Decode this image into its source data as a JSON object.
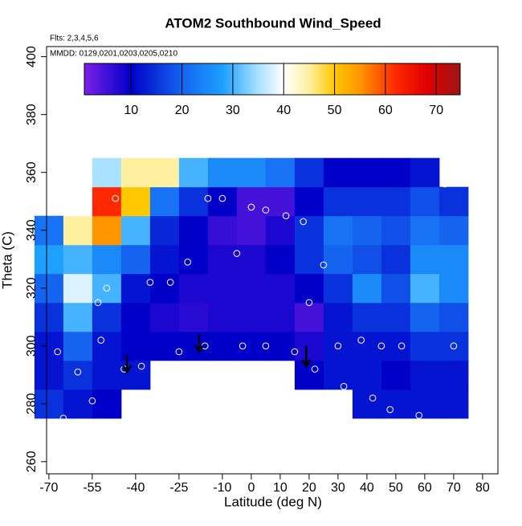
{
  "chart_data": {
    "type": "heatmap",
    "title": "ATOM2 Southbound Wind_Speed",
    "annotations": [
      "Flts: 2,3,4,5,6",
      "MMDD: 0129,0201,0203,0205,0210"
    ],
    "x_label": "Latitude (deg N)",
    "y_label": "Theta (C)",
    "xlim": [
      -70.8,
      85.3
    ],
    "ylim": [
      255.8,
      403.5
    ],
    "xticks": [
      -70,
      -55,
      -40,
      -25,
      -10,
      0,
      10,
      20,
      30,
      40,
      50,
      60,
      70,
      80
    ],
    "yticks": [
      260,
      280,
      300,
      320,
      340,
      360,
      380,
      400
    ],
    "colorbar": {
      "lim": [
        0.8,
        74.7
      ],
      "ticks": [
        10,
        20,
        30,
        40,
        50,
        60,
        70
      ]
    },
    "colorscale": [
      [
        1,
        "#7a1fe6"
      ],
      [
        10,
        "#0000c8"
      ],
      [
        20,
        "#1464f0"
      ],
      [
        28,
        "#1ea0ff"
      ],
      [
        35,
        "#a8e2ff"
      ],
      [
        40,
        "#ffffff"
      ],
      [
        45,
        "#fff0a0"
      ],
      [
        50,
        "#ffc800"
      ],
      [
        55,
        "#ff9600"
      ],
      [
        62,
        "#ff2800"
      ],
      [
        68,
        "#e00000"
      ],
      [
        75,
        "#a01414"
      ]
    ],
    "grid": {
      "x": [
        -70,
        -60,
        -50,
        -40,
        -30,
        -20,
        -10,
        0,
        10,
        20,
        30,
        40,
        50,
        60,
        70
      ],
      "y": [
        280,
        290,
        300,
        310,
        320,
        330,
        340,
        350,
        360
      ],
      "values": [
        [
          15,
          12,
          10,
          null,
          null,
          null,
          null,
          null,
          null,
          null,
          null,
          12,
          12,
          12,
          12
        ],
        [
          12,
          15,
          12,
          12,
          null,
          null,
          null,
          null,
          null,
          10,
          12,
          12,
          10,
          12,
          12
        ],
        [
          12,
          20,
          12,
          10,
          10,
          10,
          10,
          10,
          10,
          8,
          12,
          12,
          12,
          15,
          15
        ],
        [
          15,
          30,
          15,
          10,
          8,
          7,
          8,
          8,
          8,
          5,
          12,
          15,
          15,
          20,
          18
        ],
        [
          20,
          38,
          30,
          12,
          10,
          8,
          8,
          8,
          8,
          10,
          15,
          25,
          18,
          30,
          25
        ],
        [
          28,
          30,
          25,
          20,
          12,
          10,
          8,
          8,
          10,
          15,
          20,
          18,
          15,
          25,
          25
        ],
        [
          22,
          45,
          55,
          30,
          14,
          10,
          6,
          5,
          8,
          15,
          22,
          20,
          18,
          22,
          20
        ],
        [
          null,
          40,
          62,
          50,
          22,
          15,
          10,
          5,
          5,
          10,
          15,
          15,
          15,
          18,
          15
        ],
        [
          null,
          null,
          35,
          45,
          45,
          30,
          25,
          25,
          22,
          15,
          10,
          10,
          10,
          12,
          null
        ]
      ]
    },
    "points": {
      "x": [
        -67,
        -65,
        -60,
        -55,
        -52,
        -53,
        -50,
        -47,
        -44,
        -38,
        -35,
        -28,
        -22,
        -15,
        -10,
        -5,
        0,
        5,
        12,
        18,
        20,
        25,
        30,
        38,
        45,
        52,
        58,
        67,
        70,
        -3,
        5,
        15,
        22,
        32,
        42,
        48,
        -25,
        -16
      ],
      "y": [
        298,
        275,
        291,
        281,
        302,
        315,
        320,
        351,
        292,
        293,
        322,
        322,
        329,
        351,
        351,
        332,
        348,
        347,
        345,
        343,
        315,
        328,
        300,
        302,
        300,
        300,
        276,
        356,
        300,
        300,
        300,
        298,
        292,
        286,
        282,
        278,
        298,
        300
      ]
    },
    "arrows": {
      "x": [
        -43,
        -18,
        19
      ],
      "y_top": [
        297,
        304,
        300
      ],
      "y_tip": [
        291,
        298,
        293
      ]
    }
  }
}
